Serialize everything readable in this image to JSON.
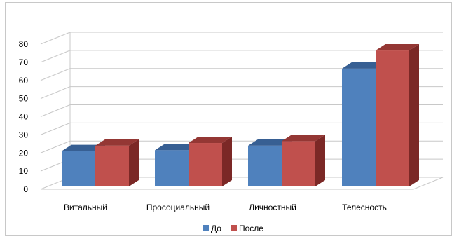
{
  "chart_data": {
    "type": "bar",
    "variant": "3d-clustered-column",
    "categories": [
      "Витальный",
      "Просоциальный",
      "Личностный",
      "Телесность"
    ],
    "series": [
      {
        "name": "До",
        "values": [
          21,
          21.5,
          24,
          66.5
        ],
        "color": "#4f81bd",
        "color_side": "#2c5285",
        "color_top": "#375f93"
      },
      {
        "name": "После",
        "values": [
          24,
          25.5,
          26.5,
          76.5
        ],
        "color": "#c0504d",
        "color_side": "#7b2826",
        "color_top": "#943734"
      }
    ],
    "y_ticks": [
      "0",
      "10",
      "20",
      "30",
      "40",
      "50",
      "60",
      "70",
      "80"
    ],
    "ylim": [
      0,
      80
    ],
    "grid": true,
    "legend_position": "bottom",
    "title": "",
    "xlabel": "",
    "ylabel": ""
  }
}
